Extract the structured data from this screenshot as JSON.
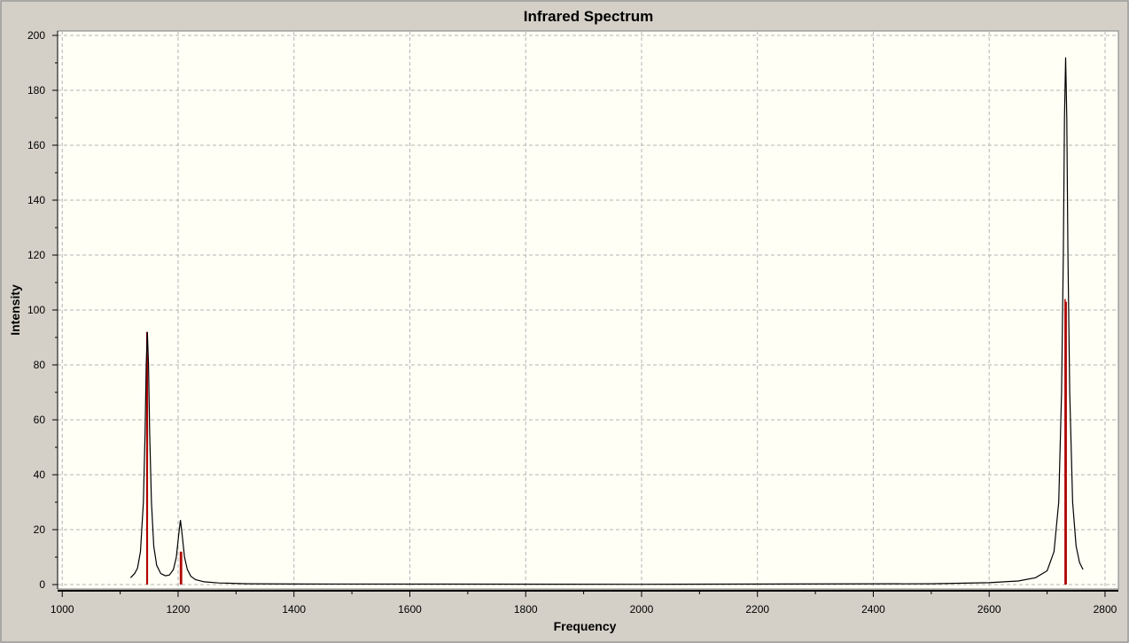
{
  "chart_data": {
    "type": "line",
    "title": "Infrared Spectrum",
    "xlabel": "Frequency",
    "ylabel": "Intensity",
    "xlim": [
      992,
      2823
    ],
    "ylim": [
      -1.6,
      201.6
    ],
    "xticks": [
      1000,
      1200,
      1400,
      1600,
      1800,
      2000,
      2200,
      2400,
      2600,
      2800
    ],
    "yticks": [
      0,
      20,
      40,
      60,
      80,
      100,
      120,
      140,
      160,
      180,
      200
    ],
    "grid": true,
    "colors": {
      "background": "#d4d0c8",
      "plot": "#fffff6",
      "curve": "#000000",
      "sticks": "#b00000",
      "grid": "#b4b4b4"
    },
    "series": [
      {
        "kind": "spectrum",
        "x": [
          1118,
          1125,
          1130,
          1135,
          1140,
          1143,
          1145,
          1147,
          1149,
          1151,
          1154,
          1158,
          1163,
          1170,
          1178,
          1185,
          1192,
          1197,
          1201,
          1204,
          1207,
          1211,
          1216,
          1222,
          1230,
          1245,
          1270,
          1320,
          1400,
          2000,
          2500,
          2600,
          2650,
          2680,
          2700,
          2712,
          2720,
          2725,
          2728,
          2730,
          2732,
          2734,
          2736,
          2739,
          2744,
          2750,
          2756,
          2762
        ],
        "y": [
          2.5,
          4,
          6,
          12,
          30,
          55,
          80,
          92,
          80,
          55,
          30,
          14,
          7,
          4,
          3.2,
          3.5,
          5.5,
          10,
          18,
          23.5,
          18,
          10,
          5.5,
          3,
          1.8,
          1,
          0.6,
          0.3,
          0.2,
          0.1,
          0.3,
          0.7,
          1.3,
          2.5,
          5,
          12,
          30,
          70,
          120,
          170,
          192,
          170,
          120,
          70,
          30,
          14,
          8,
          5.5
        ]
      },
      {
        "kind": "sticks",
        "x": [
          1146,
          1147,
          1204,
          1206,
          2731,
          2733
        ],
        "y": [
          92,
          84,
          12,
          12,
          104,
          103
        ]
      }
    ]
  }
}
